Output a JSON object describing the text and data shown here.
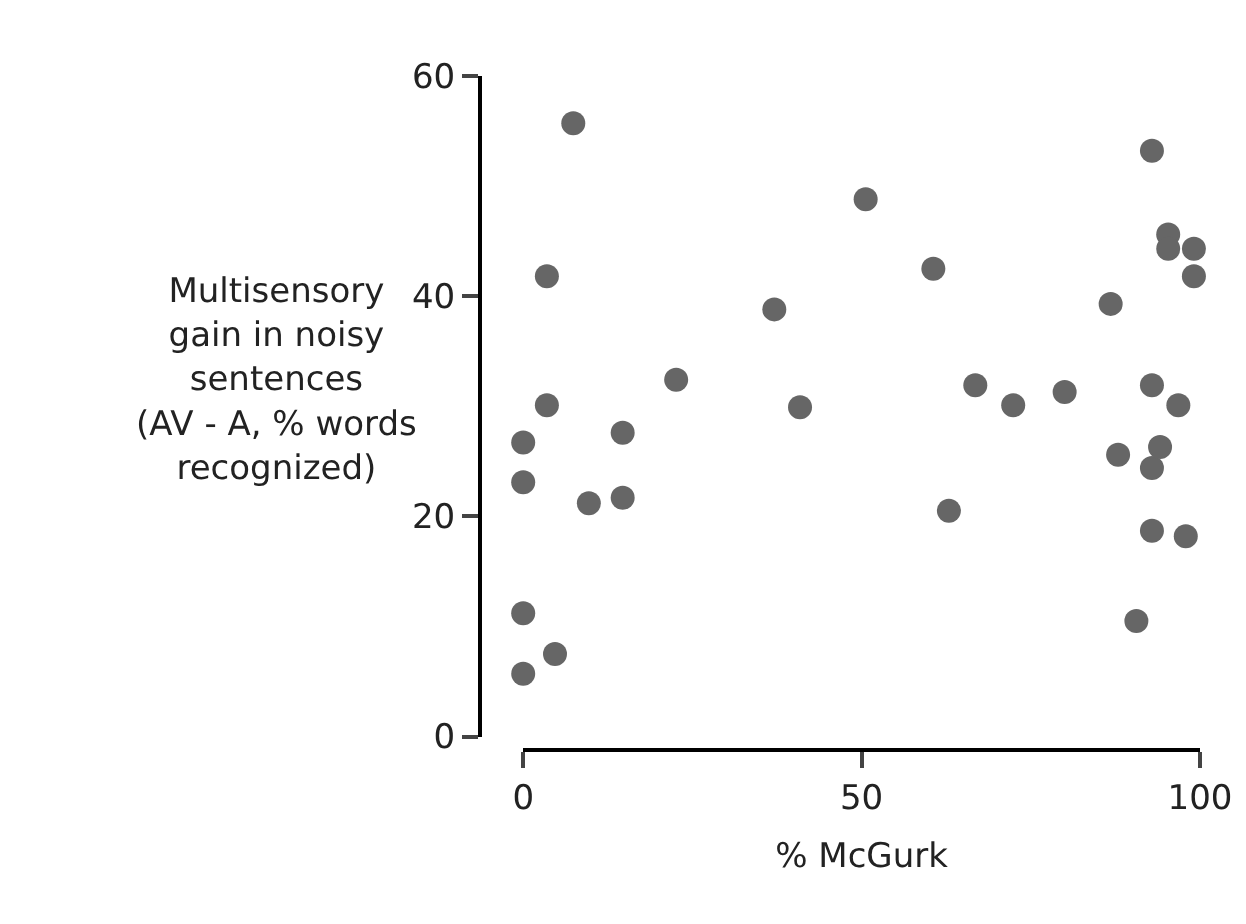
{
  "chart_data": {
    "type": "scatter",
    "xlabel": "% McGurk",
    "ylabel": "Multisensory\ngain in noisy\nsentences\n(AV - A, % words\nrecognized)",
    "x": [
      0,
      0,
      0,
      0,
      3.5,
      3.5,
      4.7,
      7.4,
      9.7,
      14.7,
      14.7,
      22.6,
      37.1,
      40.9,
      50.6,
      60.6,
      62.9,
      66.8,
      72.4,
      80,
      86.8,
      87.9,
      90.6,
      92.9,
      92.9,
      92.9,
      92.9,
      94.1,
      95.3,
      95.3,
      96.8,
      97.9,
      99.1,
      99.1
    ],
    "values": [
      26.7,
      23.1,
      11.2,
      5.7,
      41.8,
      30.1,
      7.5,
      55.7,
      21.2,
      27.6,
      21.7,
      32.4,
      38.8,
      29.9,
      48.8,
      42.5,
      20.5,
      31.9,
      30.1,
      31.3,
      39.3,
      25.6,
      10.5,
      53.2,
      31.9,
      24.4,
      18.7,
      26.3,
      45.6,
      44.3,
      30.1,
      18.2,
      44.3,
      41.8
    ],
    "color": "#666666",
    "marker": "circle",
    "grid": false,
    "xlim": [
      0,
      100
    ],
    "xticks": [
      0,
      50,
      100
    ],
    "ylim": [
      0,
      60
    ],
    "yticks": [
      0,
      20,
      40,
      60
    ]
  }
}
